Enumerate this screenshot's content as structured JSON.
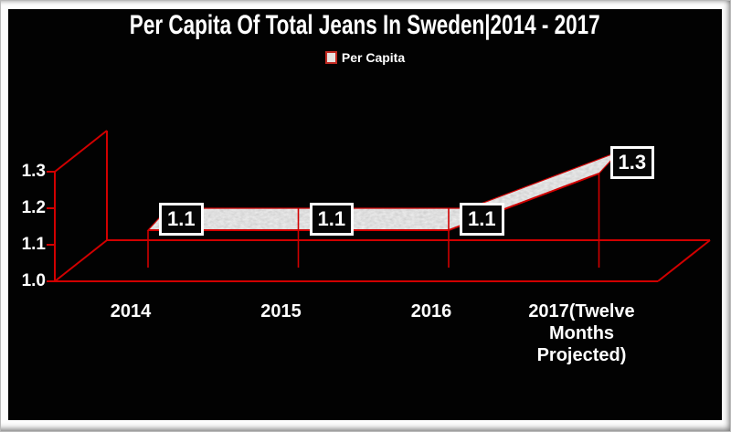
{
  "chart": {
    "title": "Per Capita Of Total Jeans In Sweden|2014 - 2017",
    "legend_label": "Per Capita"
  },
  "chart_data": {
    "type": "area",
    "projection": "3d",
    "title": "Per Capita Of Total Jeans In Sweden|2014 - 2017",
    "categories": [
      "2014",
      "2015",
      "2016",
      "2017(Twelve Months Projected)"
    ],
    "series": [
      {
        "name": "Per Capita",
        "values": [
          1.1,
          1.1,
          1.1,
          1.3
        ]
      }
    ],
    "data_labels": [
      "1.1",
      "1.1",
      "1.1",
      "1.3"
    ],
    "y_ticks": [
      "1.0",
      "1.1",
      "1.2",
      "1.3"
    ],
    "ylim": [
      1.0,
      1.3
    ],
    "xlabel": "",
    "ylabel": "",
    "grid": false,
    "legend_position": "top-center",
    "colors": {
      "panel_background": "#020202",
      "frame_background": "#ffffff",
      "wireframe": "#d10000",
      "ribbon_fill": "#b5b5b5",
      "text": "#ffffff",
      "label_box_border": "#ffffff",
      "label_box_background": "#060606"
    }
  }
}
